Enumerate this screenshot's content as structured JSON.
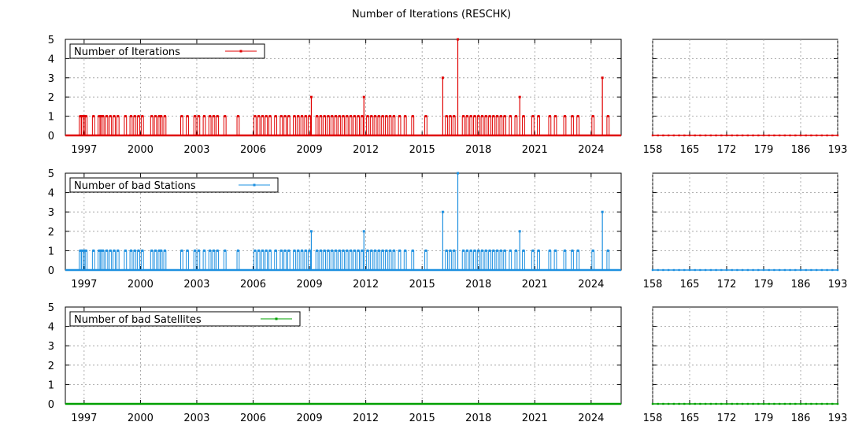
{
  "title": "Number of Iterations (RESCHK)",
  "chart_data": [
    {
      "type": "line",
      "panel": "left",
      "series": [
        {
          "name": "Number of Iterations",
          "color": "#e00000"
        }
      ],
      "xlim": [
        1996,
        2025.6
      ],
      "ylim": [
        0,
        5
      ],
      "x_ticks": [
        "1997",
        "2000",
        "2003",
        "2006",
        "2009",
        "2012",
        "2015",
        "2018",
        "2021",
        "2024"
      ],
      "y_ticks": [
        "0",
        "1",
        "2",
        "3",
        "4",
        "5"
      ],
      "grid": true,
      "legend_position": "top-left",
      "events_value_1": [
        1996.8,
        1996.9,
        1997.0,
        1997.1,
        1997.5,
        1997.8,
        1997.9,
        1998.0,
        1998.2,
        1998.4,
        1998.6,
        1998.8,
        1999.2,
        1999.5,
        1999.7,
        1999.9,
        2000.1,
        2000.6,
        2000.8,
        2001.0,
        2001.1,
        2001.3,
        2002.2,
        2002.5,
        2002.9,
        2003.1,
        2003.4,
        2003.7,
        2003.9,
        2004.1,
        2004.5,
        2005.2,
        2006.1,
        2006.3,
        2006.5,
        2006.7,
        2006.9,
        2007.2,
        2007.5,
        2007.7,
        2007.9,
        2008.2,
        2008.4,
        2008.6,
        2008.8,
        2009.0,
        2009.4,
        2009.6,
        2009.8,
        2010.0,
        2010.2,
        2010.4,
        2010.6,
        2010.8,
        2011.0,
        2011.2,
        2011.4,
        2011.6,
        2011.8,
        2012.1,
        2012.3,
        2012.5,
        2012.7,
        2012.9,
        2013.1,
        2013.3,
        2013.5,
        2013.8,
        2014.1,
        2014.5,
        2015.2,
        2016.3,
        2016.5,
        2016.7,
        2017.2,
        2017.4,
        2017.6,
        2017.8,
        2018.0,
        2018.2,
        2018.4,
        2018.6,
        2018.8,
        2019.0,
        2019.2,
        2019.4,
        2019.7,
        2020.0,
        2020.4,
        2020.9,
        2021.2,
        2021.8,
        2022.1,
        2022.6,
        2023.0,
        2023.3,
        2024.1,
        2024.9
      ],
      "spikes": [
        [
          2009.1,
          2
        ],
        [
          2011.9,
          2
        ],
        [
          2016.1,
          3
        ],
        [
          2016.9,
          5
        ],
        [
          2020.2,
          2
        ],
        [
          2024.6,
          3
        ]
      ]
    },
    {
      "type": "line",
      "panel": "right",
      "series_color": "#e00000",
      "xlim": [
        158,
        193
      ],
      "ylim": [
        0,
        5
      ],
      "x_ticks": [
        "158",
        "165",
        "172",
        "179",
        "186",
        "193"
      ],
      "values": [
        [
          158,
          0
        ],
        [
          159,
          0
        ],
        [
          160,
          0
        ],
        [
          161,
          0
        ],
        [
          162,
          0
        ],
        [
          163,
          0
        ],
        [
          164,
          0
        ],
        [
          165,
          0
        ],
        [
          166,
          0
        ],
        [
          167,
          0
        ],
        [
          168,
          0
        ],
        [
          169,
          0
        ],
        [
          170,
          0
        ],
        [
          171,
          0
        ],
        [
          172,
          0
        ],
        [
          173,
          0
        ],
        [
          174,
          0
        ],
        [
          175,
          0
        ],
        [
          176,
          0
        ],
        [
          177,
          0
        ],
        [
          178,
          0
        ],
        [
          179,
          0
        ],
        [
          180,
          0
        ],
        [
          181,
          0
        ],
        [
          182,
          0
        ],
        [
          183,
          0
        ],
        [
          184,
          0
        ],
        [
          185,
          0
        ],
        [
          186,
          0
        ],
        [
          187,
          0
        ],
        [
          188,
          0
        ],
        [
          189,
          0
        ],
        [
          190,
          0
        ],
        [
          191,
          0
        ],
        [
          192,
          0
        ],
        [
          193,
          0
        ]
      ]
    },
    {
      "type": "line",
      "panel": "left",
      "series": [
        {
          "name": "Number of bad Stations",
          "color": "#1e90e0"
        }
      ],
      "xlim": [
        1996,
        2025.6
      ],
      "ylim": [
        0,
        5
      ],
      "x_ticks": [
        "1997",
        "2000",
        "2003",
        "2006",
        "2009",
        "2012",
        "2015",
        "2018",
        "2021",
        "2024"
      ],
      "y_ticks": [
        "0",
        "1",
        "2",
        "3",
        "4",
        "5"
      ],
      "grid": true,
      "legend_position": "top-left",
      "events_value_1": [
        1996.8,
        1996.9,
        1997.0,
        1997.1,
        1997.5,
        1997.8,
        1997.9,
        1998.0,
        1998.2,
        1998.4,
        1998.6,
        1998.8,
        1999.2,
        1999.5,
        1999.7,
        1999.9,
        2000.1,
        2000.6,
        2000.8,
        2001.0,
        2001.1,
        2001.3,
        2002.2,
        2002.5,
        2002.9,
        2003.1,
        2003.4,
        2003.7,
        2003.9,
        2004.1,
        2004.5,
        2005.2,
        2006.1,
        2006.3,
        2006.5,
        2006.7,
        2006.9,
        2007.2,
        2007.5,
        2007.7,
        2007.9,
        2008.2,
        2008.4,
        2008.6,
        2008.8,
        2009.0,
        2009.4,
        2009.6,
        2009.8,
        2010.0,
        2010.2,
        2010.4,
        2010.6,
        2010.8,
        2011.0,
        2011.2,
        2011.4,
        2011.6,
        2011.8,
        2012.1,
        2012.3,
        2012.5,
        2012.7,
        2012.9,
        2013.1,
        2013.3,
        2013.5,
        2013.8,
        2014.1,
        2014.5,
        2015.2,
        2016.3,
        2016.5,
        2016.7,
        2017.2,
        2017.4,
        2017.6,
        2017.8,
        2018.0,
        2018.2,
        2018.4,
        2018.6,
        2018.8,
        2019.0,
        2019.2,
        2019.4,
        2019.7,
        2020.0,
        2020.4,
        2020.9,
        2021.2,
        2021.8,
        2022.1,
        2022.6,
        2023.0,
        2023.3,
        2024.1,
        2024.9
      ],
      "spikes": [
        [
          2009.1,
          2
        ],
        [
          2011.9,
          2
        ],
        [
          2016.1,
          3
        ],
        [
          2016.9,
          5
        ],
        [
          2020.2,
          2
        ],
        [
          2024.6,
          3
        ]
      ]
    },
    {
      "type": "line",
      "panel": "right",
      "series_color": "#1e90e0",
      "xlim": [
        158,
        193
      ],
      "ylim": [
        0,
        5
      ],
      "x_ticks": [
        "158",
        "165",
        "172",
        "179",
        "186",
        "193"
      ],
      "values": [
        [
          158,
          0
        ],
        [
          159,
          0
        ],
        [
          160,
          0
        ],
        [
          161,
          0
        ],
        [
          162,
          0
        ],
        [
          163,
          0
        ],
        [
          164,
          0
        ],
        [
          165,
          0
        ],
        [
          166,
          0
        ],
        [
          167,
          0
        ],
        [
          168,
          0
        ],
        [
          169,
          0
        ],
        [
          170,
          0
        ],
        [
          171,
          0
        ],
        [
          172,
          0
        ],
        [
          173,
          0
        ],
        [
          174,
          0
        ],
        [
          175,
          0
        ],
        [
          176,
          0
        ],
        [
          177,
          0
        ],
        [
          178,
          0
        ],
        [
          179,
          0
        ],
        [
          180,
          0
        ],
        [
          181,
          0
        ],
        [
          182,
          0
        ],
        [
          183,
          0
        ],
        [
          184,
          0
        ],
        [
          185,
          0
        ],
        [
          186,
          0
        ],
        [
          187,
          0
        ],
        [
          188,
          0
        ],
        [
          189,
          0
        ],
        [
          190,
          0
        ],
        [
          191,
          0
        ],
        [
          192,
          0
        ],
        [
          193,
          0
        ]
      ]
    },
    {
      "type": "line",
      "panel": "left",
      "series": [
        {
          "name": "Number of bad Satellites",
          "color": "#00a000"
        }
      ],
      "xlim": [
        1996,
        2025.6
      ],
      "ylim": [
        0,
        5
      ],
      "x_ticks": [
        "1997",
        "2000",
        "2003",
        "2006",
        "2009",
        "2012",
        "2015",
        "2018",
        "2021",
        "2024"
      ],
      "y_ticks": [
        "0",
        "1",
        "2",
        "3",
        "4",
        "5"
      ],
      "grid": true,
      "legend_position": "top-left",
      "events_value_1": [],
      "spikes": []
    },
    {
      "type": "line",
      "panel": "right",
      "series_color": "#00a000",
      "xlim": [
        158,
        193
      ],
      "ylim": [
        0,
        5
      ],
      "x_ticks": [
        "158",
        "165",
        "172",
        "179",
        "186",
        "193"
      ],
      "values": [
        [
          158,
          0
        ],
        [
          159,
          0
        ],
        [
          160,
          0
        ],
        [
          161,
          0
        ],
        [
          162,
          0
        ],
        [
          163,
          0
        ],
        [
          164,
          0
        ],
        [
          165,
          0
        ],
        [
          166,
          0
        ],
        [
          167,
          0
        ],
        [
          168,
          0
        ],
        [
          169,
          0
        ],
        [
          170,
          0
        ],
        [
          171,
          0
        ],
        [
          172,
          0
        ],
        [
          173,
          0
        ],
        [
          174,
          0
        ],
        [
          175,
          0
        ],
        [
          176,
          0
        ],
        [
          177,
          0
        ],
        [
          178,
          0
        ],
        [
          179,
          0
        ],
        [
          180,
          0
        ],
        [
          181,
          0
        ],
        [
          182,
          0
        ],
        [
          183,
          0
        ],
        [
          184,
          0
        ],
        [
          185,
          0
        ],
        [
          186,
          0
        ],
        [
          187,
          0
        ],
        [
          188,
          0
        ],
        [
          189,
          0
        ],
        [
          190,
          0
        ],
        [
          191,
          0
        ],
        [
          192,
          0
        ],
        [
          193,
          0
        ]
      ]
    }
  ]
}
